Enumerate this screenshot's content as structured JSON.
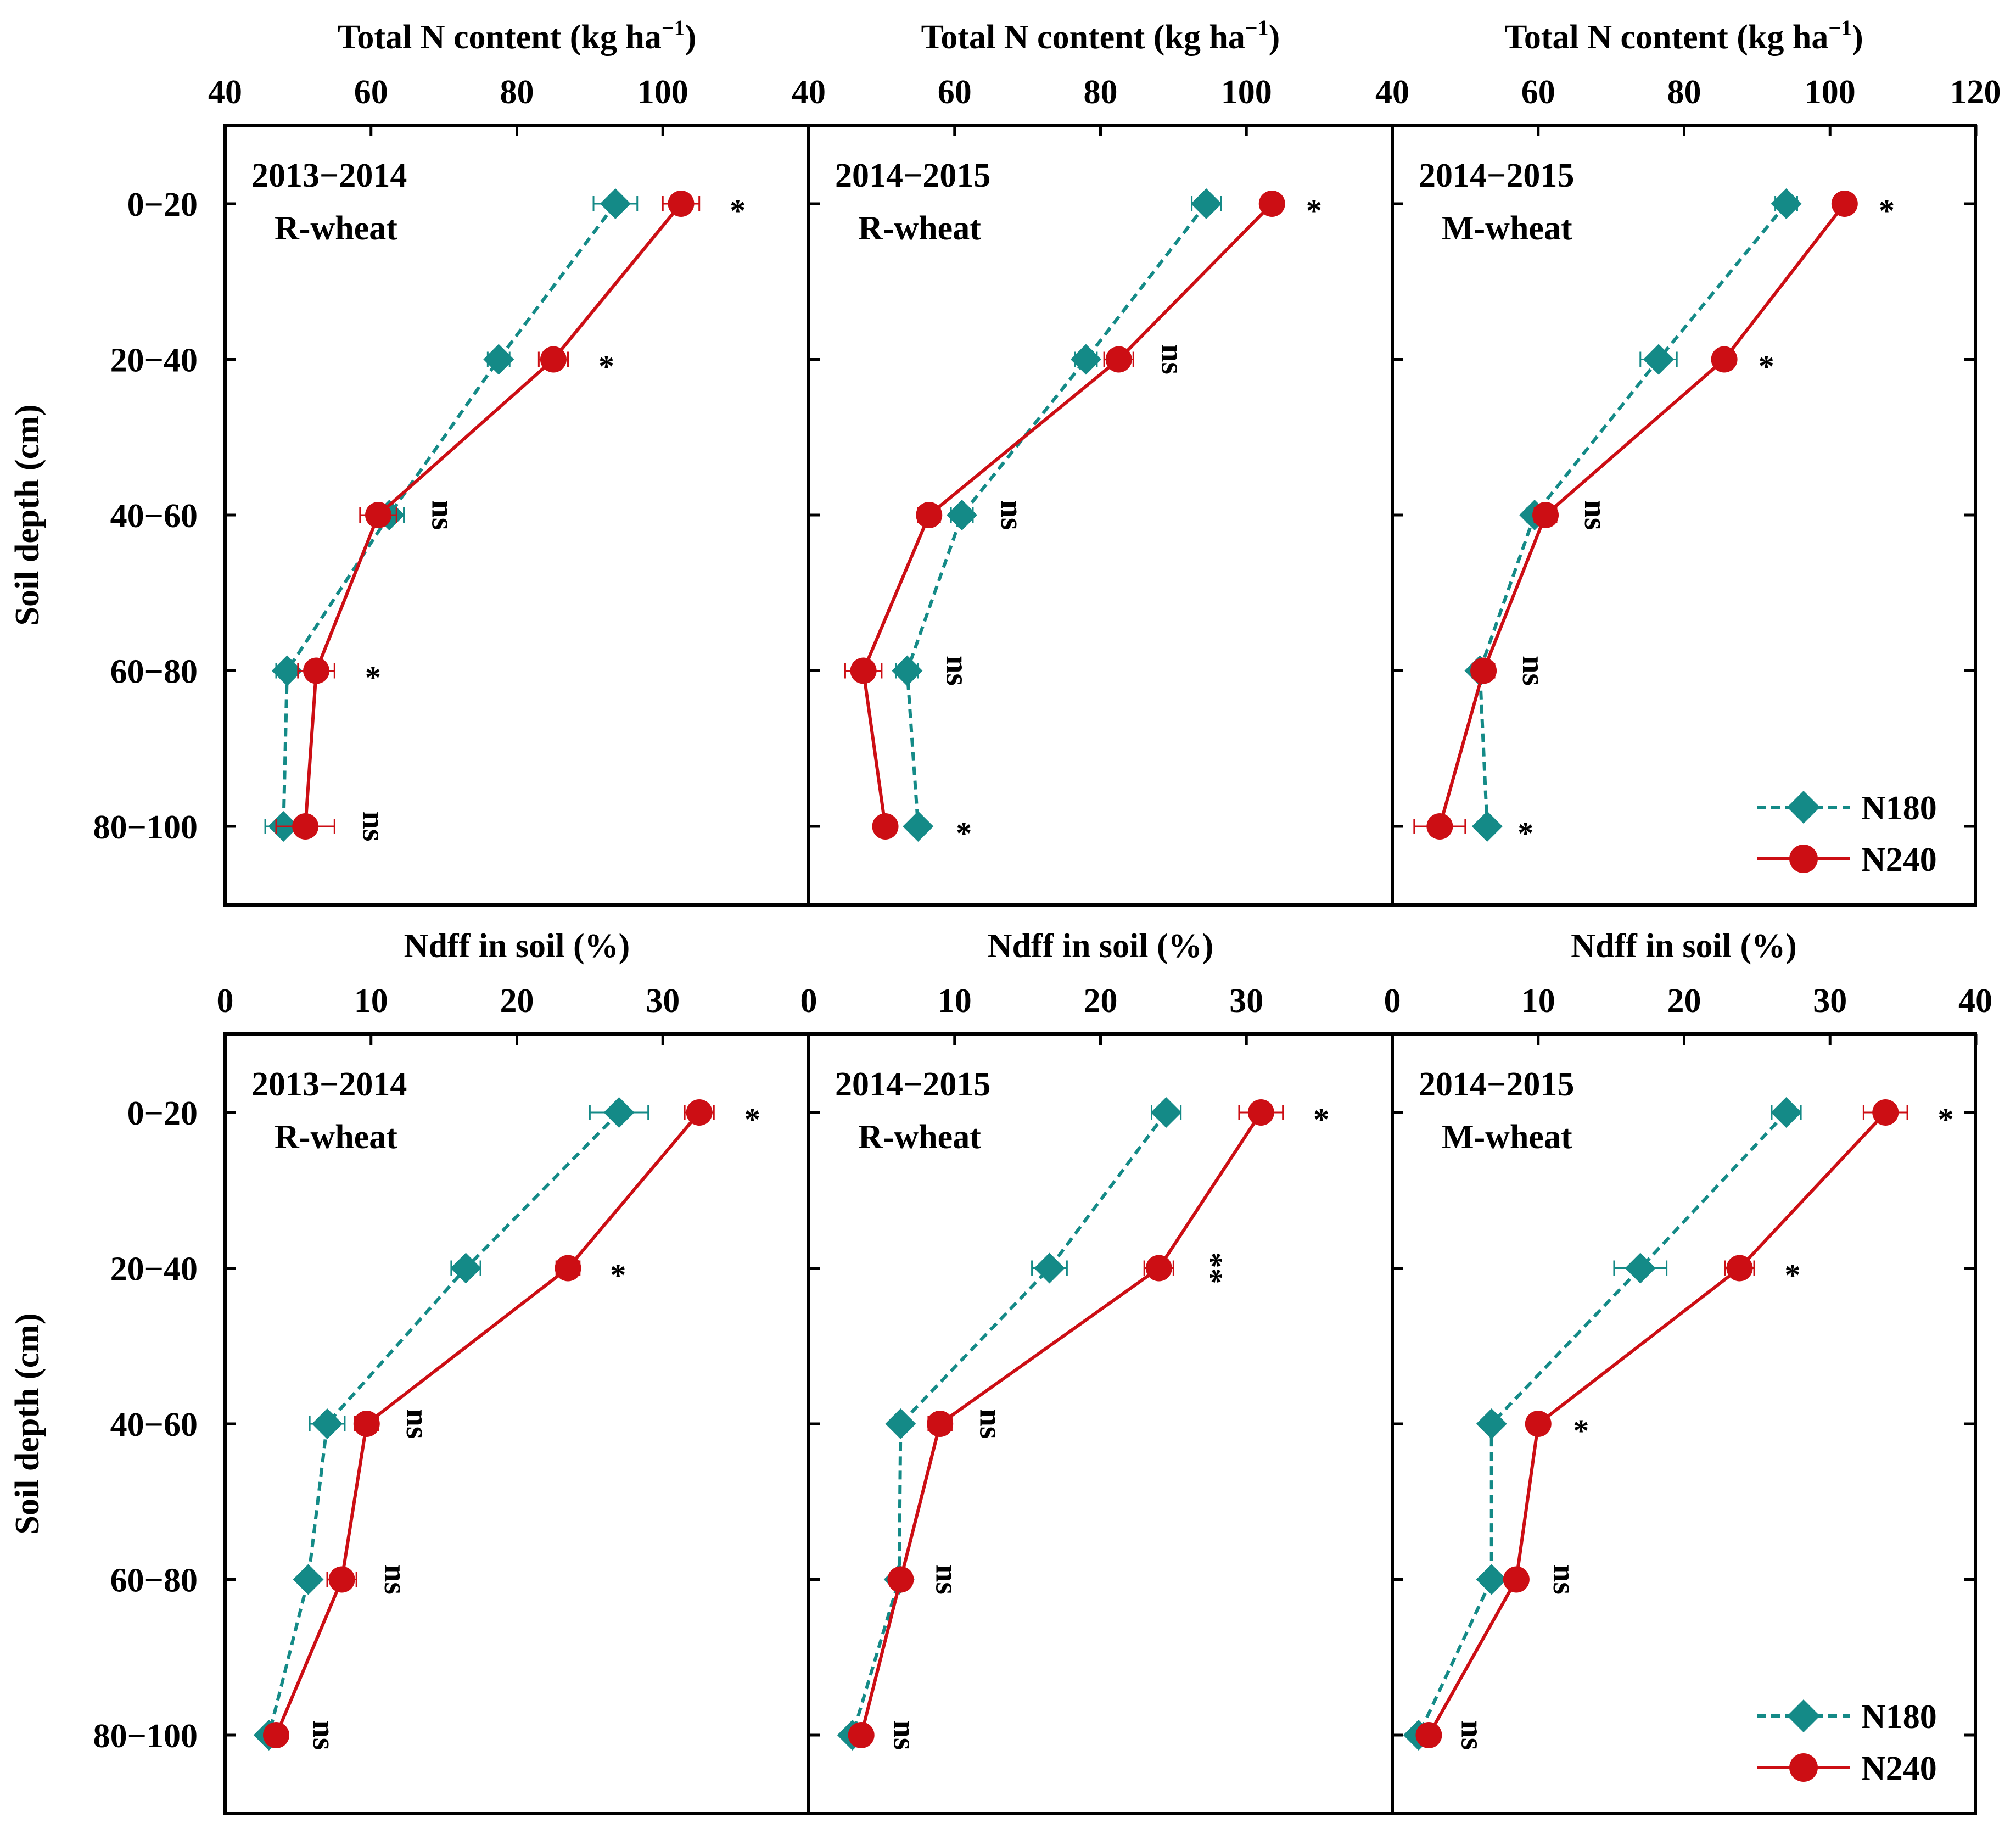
{
  "chart_data": {
    "type": "line",
    "orientation": "horizontal-profile",
    "y_axis_label": "Soil depth (cm)",
    "depth_categories": [
      "0−20",
      "20−40",
      "40−60",
      "60−80",
      "80−100"
    ],
    "series_styles": {
      "N180": {
        "color": "#148a87",
        "marker": "diamond",
        "line": "dashed"
      },
      "N240": {
        "color": "#cc0e14",
        "marker": "circle",
        "line": "solid"
      }
    },
    "legend": [
      "N180",
      "N240"
    ],
    "rows": [
      {
        "xlabel": "Total N content (kg ha",
        "xlabel_sup": "−1",
        "xlabel_close": ")",
        "xlim": [
          40,
          120
        ],
        "ticks": [
          "40",
          "60",
          "80",
          "100",
          "40",
          "60",
          "80",
          "100",
          "40",
          "60",
          "80",
          "100",
          "120"
        ],
        "panels": [
          {
            "title_line1": "2013−2014",
            "title_line2": "R-wheat",
            "xlim": [
              40,
              120
            ],
            "series": [
              {
                "name": "N180",
                "values": [
                  93.5,
                  77.5,
                  62.5,
                  48.5,
                  48.0
                ],
                "errors": [
                  3.0,
                  1.5,
                  2.0,
                  1.5,
                  2.5
                ]
              },
              {
                "name": "N240",
                "values": [
                  102.5,
                  85.0,
                  61.0,
                  52.5,
                  51.0
                ],
                "errors": [
                  2.5,
                  2.0,
                  2.5,
                  2.5,
                  4.0
                ]
              }
            ],
            "significance": [
              "*",
              "*",
              "ns",
              "*",
              "ns"
            ]
          },
          {
            "title_line1": "2014−2015",
            "title_line2": "R-wheat",
            "xlim": [
              40,
              120
            ],
            "series": [
              {
                "name": "N180",
                "values": [
                  94.5,
                  78.0,
                  61.0,
                  53.5,
                  55.0
                ],
                "errors": [
                  2.0,
                  1.5,
                  1.5,
                  1.5,
                  1.0
                ]
              },
              {
                "name": "N240",
                "values": [
                  103.5,
                  82.5,
                  56.5,
                  47.5,
                  50.5
                ],
                "errors": [
                  0.5,
                  2.0,
                  1.5,
                  2.5,
                  1.0
                ]
              }
            ],
            "significance": [
              "*",
              "ns",
              "ns",
              "ns",
              "*"
            ]
          },
          {
            "title_line1": "2014−2015",
            "title_line2": "M-wheat",
            "xlim": [
              40,
              120
            ],
            "series": [
              {
                "name": "N180",
                "values": [
                  94.0,
                  76.5,
                  59.5,
                  52.0,
                  53.0
                ],
                "errors": [
                  1.5,
                  2.5,
                  1.0,
                  1.0,
                  0.0
                ]
              },
              {
                "name": "N240",
                "values": [
                  102.0,
                  85.5,
                  61.0,
                  52.5,
                  46.5
                ],
                "errors": [
                  0.5,
                  0.5,
                  1.5,
                  1.5,
                  3.5
                ]
              }
            ],
            "significance": [
              "*",
              "*",
              "ns",
              "ns",
              "*"
            ]
          }
        ]
      },
      {
        "xlabel": "Ndff in soil (%)",
        "xlabel_sup": "",
        "xlabel_close": "",
        "xlim": [
          0,
          40
        ],
        "ticks": [
          "0",
          "10",
          "20",
          "30",
          "0",
          "10",
          "20",
          "30",
          "0",
          "10",
          "20",
          "30",
          "40"
        ],
        "panels": [
          {
            "title_line1": "2013−2014",
            "title_line2": "R-wheat",
            "xlim": [
              0,
              40
            ],
            "series": [
              {
                "name": "N180",
                "values": [
                  27.0,
                  16.5,
                  7.0,
                  5.7,
                  3.0
                ],
                "errors": [
                  2.0,
                  1.0,
                  1.2,
                  0.5,
                  0.3
                ]
              },
              {
                "name": "N240",
                "values": [
                  32.5,
                  23.5,
                  9.7,
                  8.0,
                  3.5
                ],
                "errors": [
                  1.0,
                  0.8,
                  0.8,
                  1.0,
                  0.6
                ]
              }
            ],
            "significance": [
              "*",
              "*",
              "ns",
              "ns",
              "ns"
            ]
          },
          {
            "title_line1": "2014−2015",
            "title_line2": "R-wheat",
            "xlim": [
              0,
              40
            ],
            "series": [
              {
                "name": "N180",
                "values": [
                  24.5,
                  16.5,
                  6.3,
                  6.2,
                  3.0
                ],
                "errors": [
                  1.0,
                  1.2,
                  0.3,
                  0.6,
                  0.3
                ]
              },
              {
                "name": "N240",
                "values": [
                  31.0,
                  24.0,
                  9.0,
                  6.3,
                  3.6
                ],
                "errors": [
                  1.5,
                  1.0,
                  0.8,
                  0.3,
                  0.3
                ]
              }
            ],
            "significance": [
              "*",
              "**",
              "ns",
              "ns",
              "ns"
            ]
          },
          {
            "title_line1": "2014−2015",
            "title_line2": "M-wheat",
            "xlim": [
              0,
              40
            ],
            "series": [
              {
                "name": "N180",
                "values": [
                  27.0,
                  17.0,
                  6.8,
                  6.8,
                  1.8
                ],
                "errors": [
                  1.0,
                  1.8,
                  0.3,
                  0.5,
                  0.3
                ]
              },
              {
                "name": "N240",
                "values": [
                  33.8,
                  23.8,
                  10.0,
                  8.5,
                  2.5
                ],
                "errors": [
                  1.5,
                  1.0,
                  0.3,
                  0.6,
                  0.3
                ]
              }
            ],
            "significance": [
              "*",
              "*",
              "*",
              "ns",
              "ns"
            ]
          }
        ]
      }
    ]
  }
}
